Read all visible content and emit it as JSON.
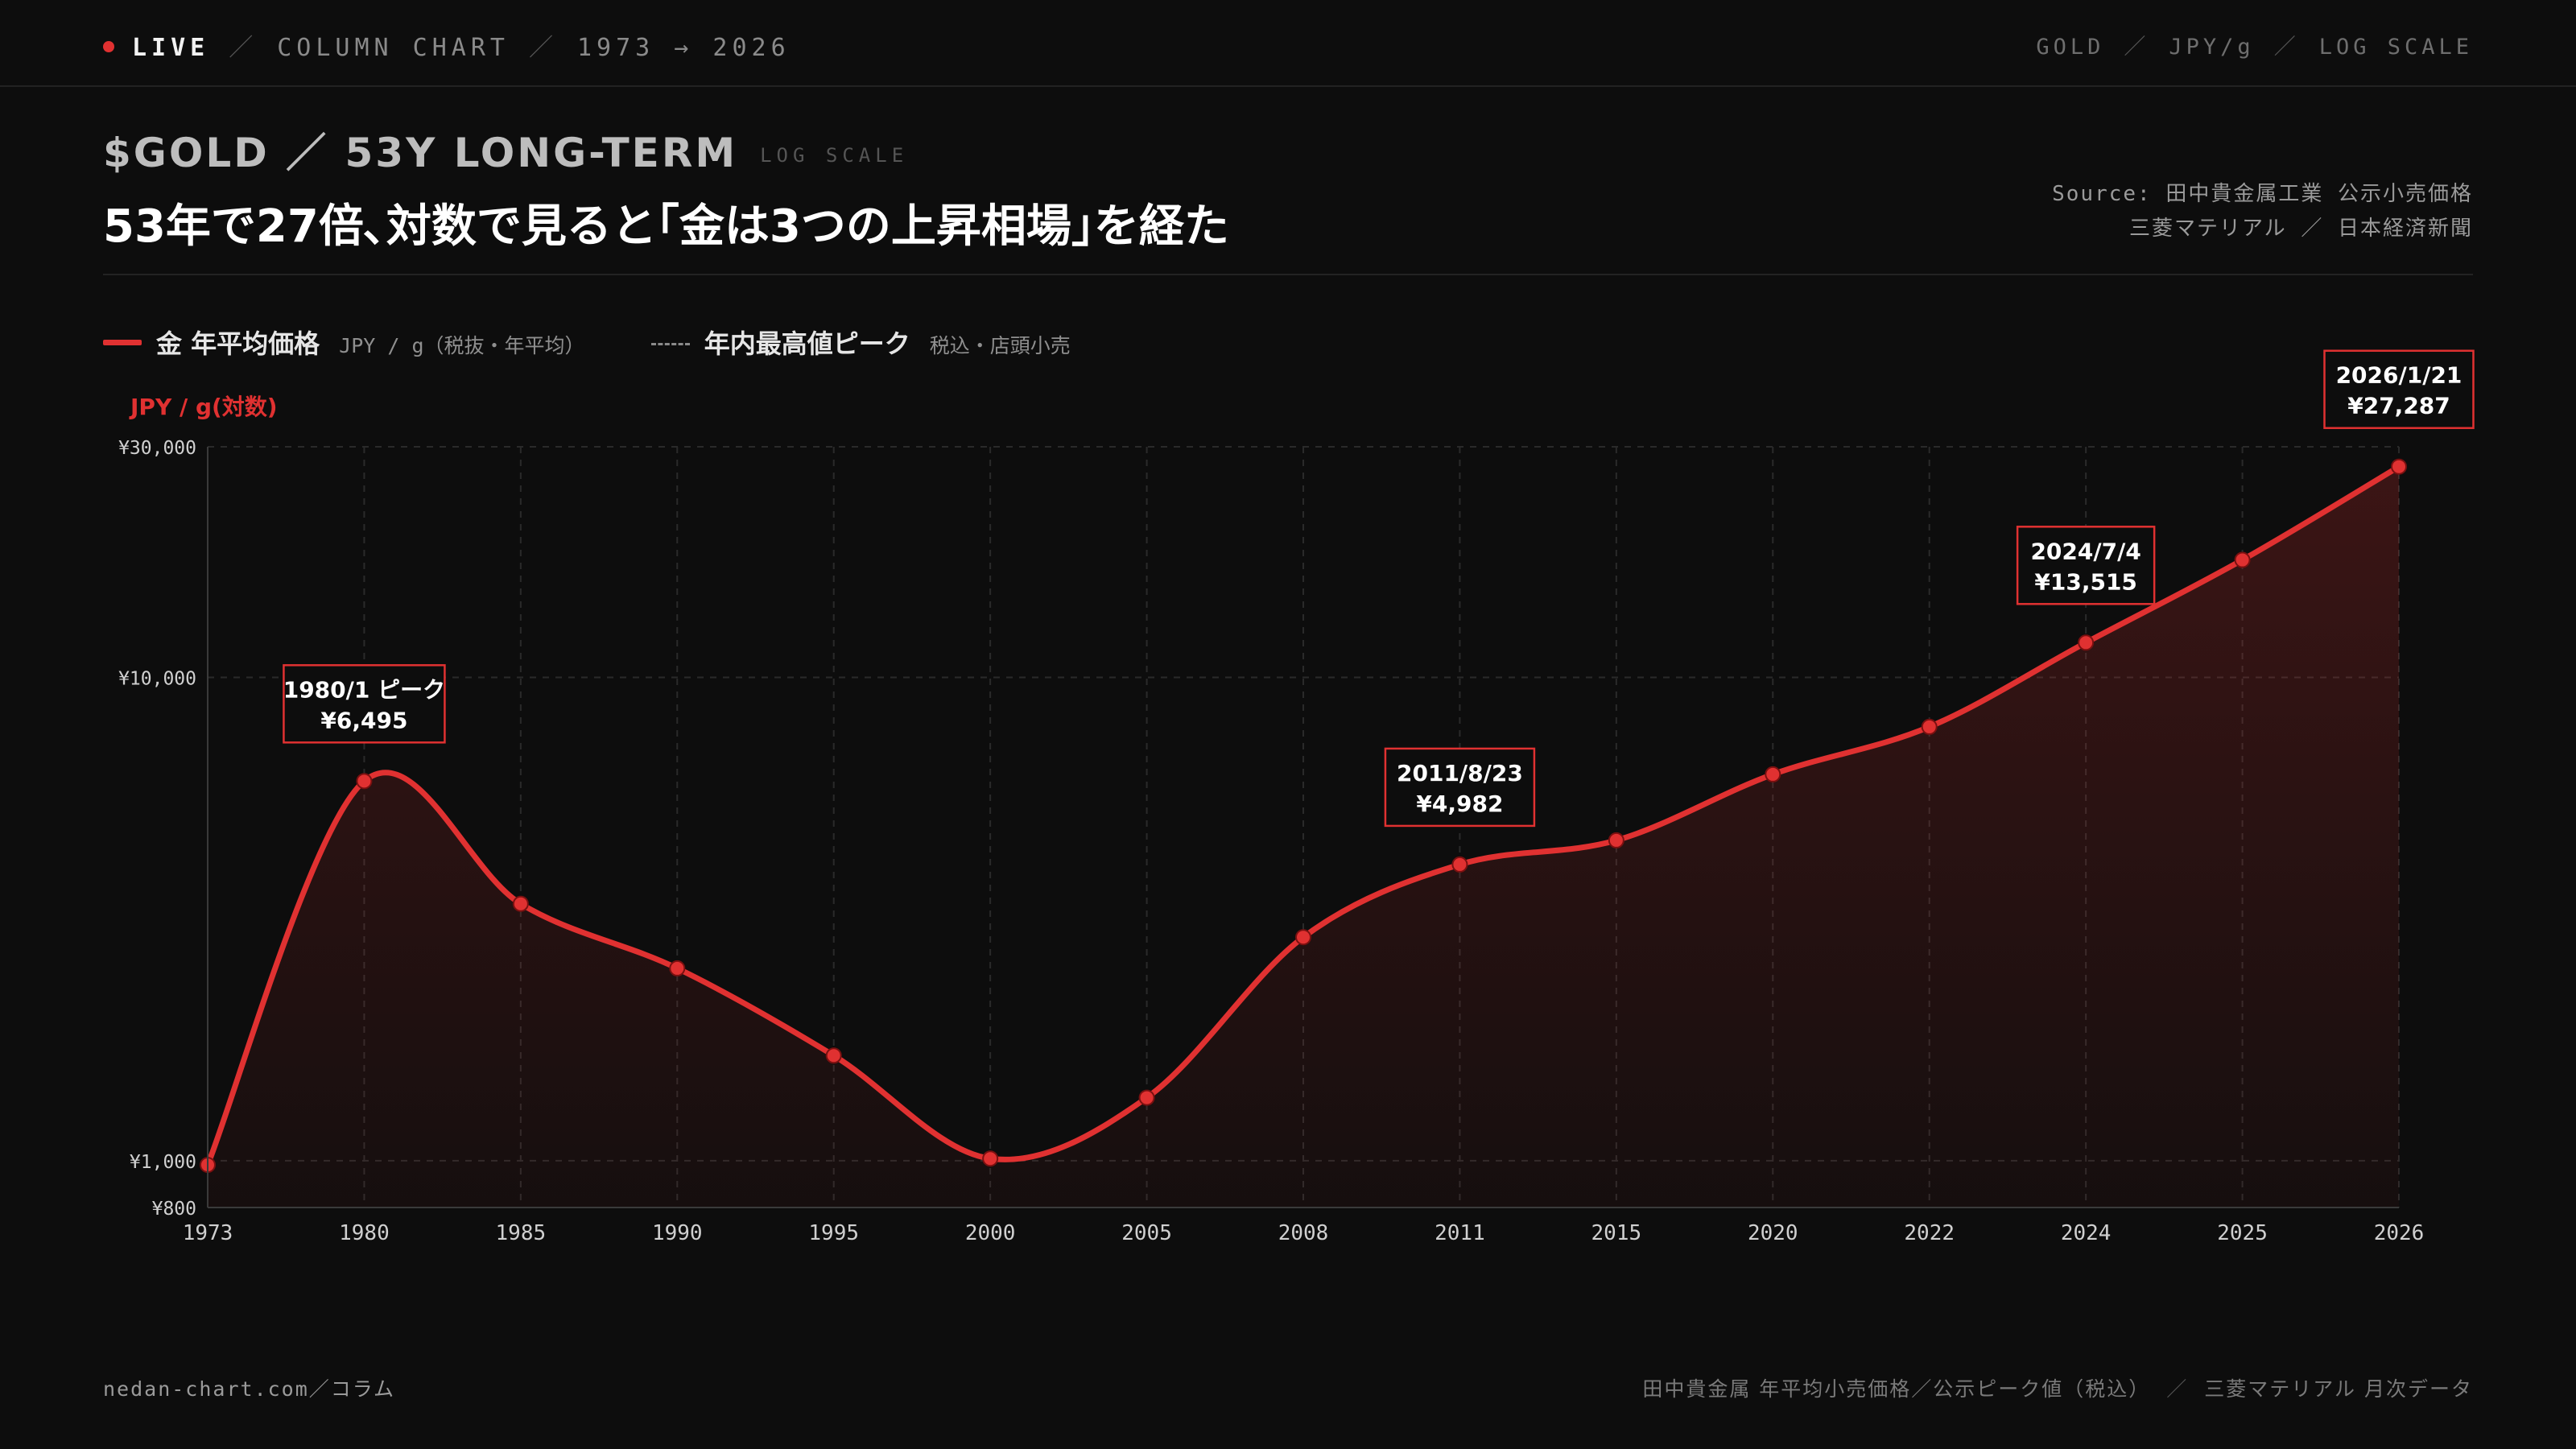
{
  "topbar": {
    "live": "LIVE",
    "crumbs": [
      "COLUMN CHART",
      "1973 → 2026"
    ],
    "right": [
      "GOLD",
      "JPY/g",
      "LOG SCALE"
    ]
  },
  "header": {
    "kicker": "$GOLD ／ 53Y LONG-TERM",
    "kicker_tag": "LOG SCALE",
    "headline": "53年で27倍､対数で見ると｢金は3つの上昇相場｣を経た",
    "source_line1": "Source: 田中貴金属工業 公示小売価格",
    "source_line2": "三菱マテリアル ／ 日本経済新聞"
  },
  "legend": {
    "series1_label": "金 年平均価格",
    "series1_unit": "JPY / g（税抜・年平均）",
    "series2_label": "年内最高値ピーク",
    "series2_unit": "税込・店頭小売"
  },
  "footer": {
    "left": "nedan-chart.com／コラム",
    "right_1": "田中貴金属 年平均小売価格／公示ピーク値（税込）",
    "right_2": "三菱マテリアル 月次データ"
  },
  "colors": {
    "accent": "#e03131",
    "background": "#0d0d0d",
    "grid": "#2a2a2a"
  },
  "chart_data": {
    "type": "line",
    "ylabel": "JPY / g(対数)",
    "y_scale": "log",
    "ylim": [
      800,
      30000
    ],
    "yticks": [
      {
        "value": 30000,
        "label": "¥30,000"
      },
      {
        "value": 10000,
        "label": "¥10,000"
      },
      {
        "value": 1000,
        "label": "¥1,000"
      },
      {
        "value": 800,
        "label": "¥800"
      }
    ],
    "categories": [
      "1973",
      "1980",
      "1985",
      "1990",
      "1995",
      "2000",
      "2005",
      "2008",
      "2011",
      "2015",
      "2020",
      "2022",
      "2024",
      "2025",
      "2026"
    ],
    "series": [
      {
        "name": "金 年平均価格",
        "values": [
          980,
          6100,
          3400,
          2500,
          1650,
          1010,
          1350,
          2900,
          4100,
          4600,
          6300,
          7900,
          11800,
          17500,
          27287
        ]
      }
    ],
    "annotations": [
      {
        "index": 1,
        "line1": "1980/1 ピーク",
        "line2": "¥6,495"
      },
      {
        "index": 8,
        "line1": "2011/8/23",
        "line2": "¥4,982"
      },
      {
        "index": 12,
        "line1": "2024/7/4",
        "line2": "¥13,515"
      },
      {
        "index": 14,
        "line1": "2026/1/21",
        "line2": "¥27,287"
      }
    ],
    "grid": true,
    "legend_position": "top-left"
  }
}
